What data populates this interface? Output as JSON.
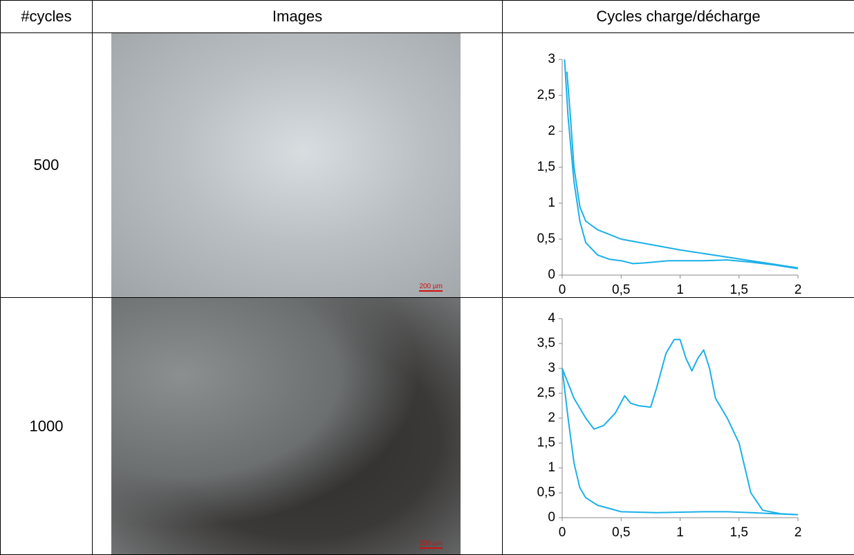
{
  "table": {
    "header": [
      "#cycles",
      "Images",
      "Cycles charge/décharge"
    ],
    "rows": [
      {
        "cycles": 500,
        "scale_bar": "200 µm"
      },
      {
        "cycles": 1000,
        "scale_bar": "200 µm"
      }
    ]
  },
  "chart_data": [
    {
      "type": "line",
      "color": "#1ab0e8",
      "xlim": [
        0,
        2
      ],
      "ylim": [
        0,
        3
      ],
      "xticks": [
        0,
        {
          "value": 0.5,
          "label": "0,5"
        },
        1,
        {
          "value": 1.5,
          "label": "1,5"
        },
        2
      ],
      "yticks": [
        0,
        {
          "value": 0.5,
          "label": "0,5"
        },
        1,
        {
          "value": 1.5,
          "label": "1,5"
        },
        2,
        {
          "value": 2.5,
          "label": "2,5"
        },
        3
      ],
      "series": [
        {
          "x": [
            0.02,
            0.05,
            0.1,
            0.15,
            0.2,
            0.3,
            0.4,
            0.5,
            0.6,
            0.7,
            0.9,
            1.2,
            1.4,
            1.6,
            1.8,
            2
          ],
          "values": [
            3.0,
            2.2,
            1.3,
            0.75,
            0.45,
            0.28,
            0.22,
            0.2,
            0.16,
            0.17,
            0.2,
            0.2,
            0.21,
            0.18,
            0.14,
            0.09
          ]
        },
        {
          "x": [
            0.04,
            0.07,
            0.1,
            0.15,
            0.2,
            0.3,
            0.5,
            1,
            1.4,
            1.6,
            1.8,
            2
          ],
          "values": [
            2.83,
            2.2,
            1.5,
            0.95,
            0.75,
            0.63,
            0.5,
            0.35,
            0.25,
            0.2,
            0.15,
            0.1
          ]
        }
      ]
    },
    {
      "type": "line",
      "color": "#1ab0e8",
      "xlim": [
        0,
        2
      ],
      "ylim": [
        0,
        4
      ],
      "xticks": [
        0,
        {
          "value": 0.5,
          "label": "0,5"
        },
        1,
        {
          "value": 1.5,
          "label": "1,5"
        },
        2
      ],
      "yticks": [
        0,
        {
          "value": 0.5,
          "label": "0,5"
        },
        1,
        {
          "value": 1.5,
          "label": "1,5"
        },
        2,
        {
          "value": 2.5,
          "label": "2,5"
        },
        3,
        {
          "value": 3.5,
          "label": "3,5"
        },
        4
      ],
      "series": [
        {
          "x": [
            0,
            0.05,
            0.1,
            0.15,
            0.2,
            0.3,
            0.5,
            0.8,
            1.2,
            1.4,
            1.6,
            1.8,
            2
          ],
          "values": [
            3.0,
            2.0,
            1.1,
            0.6,
            0.4,
            0.25,
            0.12,
            0.1,
            0.12,
            0.12,
            0.1,
            0.08,
            0.06
          ]
        },
        {
          "x": [
            0,
            0.1,
            0.2,
            0.27,
            0.35,
            0.45,
            0.53,
            0.58,
            0.65,
            0.75,
            0.8,
            0.88,
            0.95,
            1,
            1.05,
            1.1,
            1.15,
            1.2,
            1.25,
            1.3,
            1.4,
            1.5,
            1.55,
            1.6,
            1.7,
            1.85,
            2
          ],
          "values": [
            3.0,
            2.4,
            2.0,
            1.78,
            1.85,
            2.1,
            2.45,
            2.3,
            2.25,
            2.22,
            2.6,
            3.3,
            3.58,
            3.58,
            3.2,
            2.95,
            3.2,
            3.37,
            3.0,
            2.4,
            2.0,
            1.5,
            1.0,
            0.5,
            0.15,
            0.08,
            0.06
          ]
        }
      ]
    }
  ]
}
